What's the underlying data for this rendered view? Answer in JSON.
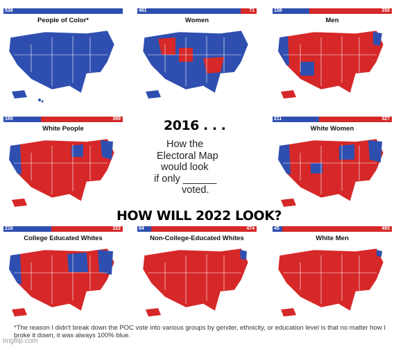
{
  "panels": [
    {
      "title": "People of Color*",
      "dem": 538,
      "rep": null,
      "fill": "blue"
    },
    {
      "title": "Women",
      "dem": 461,
      "rep": 71,
      "fill": "mostly-blue"
    },
    {
      "title": "Men",
      "dem": 158,
      "rep": 350,
      "fill": "mostly-red"
    },
    {
      "title": "White People",
      "dem": 169,
      "rep": 369,
      "fill": "mostly-red"
    },
    {
      "title": "White Women",
      "dem": 211,
      "rep": 327,
      "fill": "mostly-red"
    },
    {
      "title": "College Educated Whites",
      "dem": 216,
      "rep": 322,
      "fill": "mostly-red"
    },
    {
      "title": "Non-College-Educated Whites",
      "dem": 64,
      "rep": 474,
      "fill": "red"
    },
    {
      "title": "White Men",
      "dem": 45,
      "rep": 493,
      "fill": "red"
    }
  ],
  "center": {
    "year_line": "2016 . . .",
    "caption_lines": [
      "How the",
      "Electoral Map",
      "would look",
      "if only ______",
      "voted."
    ],
    "question": "HOW WILL 2022 LOOK?"
  },
  "footnote": "*The reason I didn't break down the POC vote into various groups by gender, ethnicity, or education level is that no matter how I broke it down, it was always 100% blue.",
  "watermark": "imgflip.com",
  "colors": {
    "dem": "#2f4fb0",
    "rep": "#d62828"
  }
}
